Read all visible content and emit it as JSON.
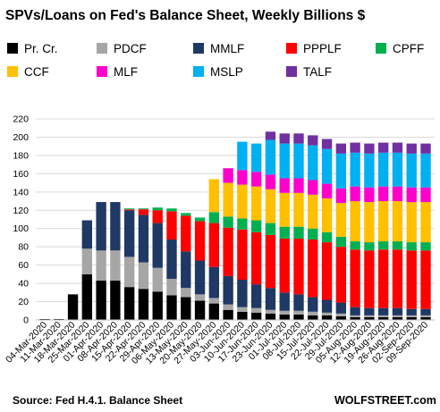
{
  "chart_data": {
    "type": "bar",
    "stacked": true,
    "title": "SPVs/Loans  on Fed's Balance Sheet, Weekly Billions $",
    "source": "Source: Fed H.4.1. Balance Sheet",
    "brand": "WOLFSTREET.com",
    "ylim": [
      0,
      220
    ],
    "yticks": [
      0,
      20,
      40,
      60,
      80,
      100,
      120,
      140,
      160,
      180,
      200,
      220
    ],
    "grid": true,
    "legend_position": "top",
    "x_tick_labels": [
      "04-Mar-2020",
      "11-Mar-2020",
      "18-Mar-2020",
      "25-Mar-2020",
      "01-Apr-2020",
      "08-Apr-2020",
      "15-Apr-2020",
      "22-Apr-2020",
      "29-Apr-2020",
      "06-May-2020",
      "13-May-2020",
      "20-May-2020",
      "27-May-2020",
      "03-Jun-2020",
      "10-Jun-2020",
      "17-Jun-2020",
      "23-Jun-2020",
      "01-Jul-2020",
      "08-Jul-2020",
      "15-Jul-2020",
      "22-Jul-2020",
      "29-Jul-2020",
      "05-Aug-2020",
      "12-Aug-2020",
      "19-Aug-2020",
      "26-Aug-2020",
      "02-Sep-2020",
      "09-Sep-2020"
    ],
    "series": [
      {
        "name": "Pr. Cr.",
        "color": "#000000",
        "values": [
          1,
          1,
          28,
          50,
          43,
          43,
          36,
          34,
          31,
          27,
          25,
          21,
          18,
          11,
          9,
          8,
          7,
          6,
          6,
          5,
          5,
          4,
          3,
          3,
          3,
          3,
          3,
          3
        ]
      },
      {
        "name": "PDCF",
        "color": "#a6a6a6",
        "values": [
          0,
          0,
          0,
          28,
          33,
          33,
          33,
          29,
          26,
          18,
          10,
          7,
          6,
          6,
          5,
          5,
          4,
          4,
          4,
          4,
          3,
          3,
          2,
          2,
          2,
          2,
          2,
          2
        ]
      },
      {
        "name": "MMLF",
        "color": "#1f3864",
        "values": [
          0,
          0,
          0,
          31,
          53,
          53,
          51,
          52,
          49,
          43,
          40,
          37,
          34,
          31,
          30,
          26,
          24,
          20,
          18,
          16,
          14,
          12,
          9,
          8,
          8,
          8,
          7,
          7
        ]
      },
      {
        "name": "PPPLF",
        "color": "#ff0000",
        "values": [
          0,
          0,
          0,
          0,
          0,
          0,
          1,
          6,
          14,
          31,
          39,
          43,
          48,
          53,
          55,
          57,
          58,
          59,
          61,
          63,
          63,
          61,
          63,
          63,
          64,
          64,
          64,
          64
        ]
      },
      {
        "name": "CPFF",
        "color": "#00b050",
        "values": [
          0,
          0,
          0,
          0,
          0,
          0,
          1,
          1,
          3,
          3,
          3,
          4,
          12,
          12,
          12,
          13,
          13,
          13,
          13,
          12,
          11,
          11,
          9,
          9,
          9,
          9,
          9,
          9
        ]
      },
      {
        "name": "CCF",
        "color": "#ffc000",
        "values": [
          0,
          0,
          0,
          0,
          0,
          0,
          0,
          0,
          0,
          0,
          0,
          0,
          36,
          37,
          37,
          37,
          37,
          37,
          37,
          37,
          37,
          37,
          44,
          44,
          44,
          44,
          44,
          44
        ]
      },
      {
        "name": "MLF",
        "color": "#ff00cc",
        "values": [
          0,
          0,
          0,
          0,
          0,
          0,
          0,
          0,
          0,
          0,
          0,
          0,
          0,
          16,
          16,
          16,
          16,
          16,
          16,
          16,
          16,
          16,
          16,
          16,
          16,
          16,
          16,
          16
        ]
      },
      {
        "name": "MSLP",
        "color": "#00b0f0",
        "values": [
          0,
          0,
          0,
          0,
          0,
          0,
          0,
          0,
          0,
          0,
          0,
          0,
          0,
          0,
          31,
          31,
          38,
          38,
          38,
          38,
          38,
          38,
          37,
          37,
          37,
          37,
          37,
          37
        ]
      },
      {
        "name": "TALF",
        "color": "#7030a0",
        "values": [
          0,
          0,
          0,
          0,
          0,
          0,
          0,
          0,
          0,
          0,
          0,
          0,
          0,
          0,
          0,
          0,
          9,
          11,
          11,
          11,
          11,
          11,
          11,
          11,
          11,
          11,
          11,
          11
        ]
      }
    ]
  }
}
